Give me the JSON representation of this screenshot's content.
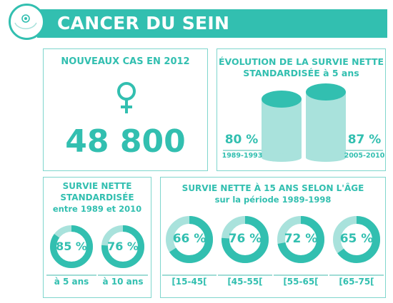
{
  "header": {
    "title": "CANCER DU SEIN"
  },
  "new_cases": {
    "title": "NOUVEAUX CAS EN 2012",
    "icon": "female-symbol-icon",
    "value": "48 800"
  },
  "evolution": {
    "title_line1": "ÉVOLUTION DE LA SURVIE NETTE",
    "title_line2": "STANDARDISÉE à 5 ans",
    "left": {
      "value": "80 %",
      "period": "1989-1993"
    },
    "right": {
      "value": "87 %",
      "period": "2005-2010"
    },
    "chart_data": {
      "type": "bar",
      "categories": [
        "1989-1993",
        "2005-2010"
      ],
      "values": [
        80,
        87
      ]
    }
  },
  "survival_time": {
    "title_line1": "SURVIE NETTE",
    "title_line2": "STANDARDISÉE",
    "title_line3": "entre 1989 et 2010",
    "items": [
      {
        "value": "85 %",
        "pct": 85,
        "label": "à 5 ans"
      },
      {
        "value": "76 %",
        "pct": 76,
        "label": "à 10 ans"
      }
    ]
  },
  "survival_age": {
    "title_line1": "SURVIE NETTE À 15 ANS SELON L'ÂGE",
    "title_line2": "sur la période 1989-1998",
    "items": [
      {
        "value": "66 %",
        "pct": 66,
        "label": "[15-45["
      },
      {
        "value": "76 %",
        "pct": 76,
        "label": "[45-55["
      },
      {
        "value": "72 %",
        "pct": 72,
        "label": "[55-65["
      },
      {
        "value": "65 %",
        "pct": 65,
        "label": "[65-75["
      }
    ]
  },
  "colors": {
    "accent": "#32bfb0",
    "light": "#a9e2dc",
    "border": "#7fd6cd"
  }
}
